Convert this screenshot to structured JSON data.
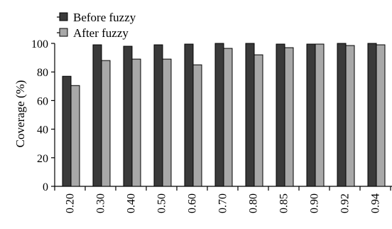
{
  "chart_data": {
    "type": "bar",
    "title": "",
    "xlabel": "",
    "ylabel": "Coverage (%)",
    "ylim": [
      0,
      100
    ],
    "yticks": [
      "0",
      "20",
      "40",
      "60",
      "80",
      "100"
    ],
    "categories": [
      "0.20",
      "0.30",
      "0.40",
      "0.50",
      "0.60",
      "0.70",
      "0.80",
      "0.85",
      "0.90",
      "0.92",
      "0.94"
    ],
    "series": [
      {
        "name": "Before fuzzy",
        "color": "#3a3a3a",
        "values": [
          77,
          99,
          98,
          99,
          99.5,
          100,
          100,
          99.5,
          99.5,
          100,
          100
        ]
      },
      {
        "name": "After fuzzy",
        "color": "#a8a8a8",
        "values": [
          70.5,
          88,
          89,
          89,
          85,
          96.5,
          92,
          97,
          99.5,
          98.5,
          99
        ]
      }
    ],
    "legend_position": "top-left",
    "grid": false
  }
}
